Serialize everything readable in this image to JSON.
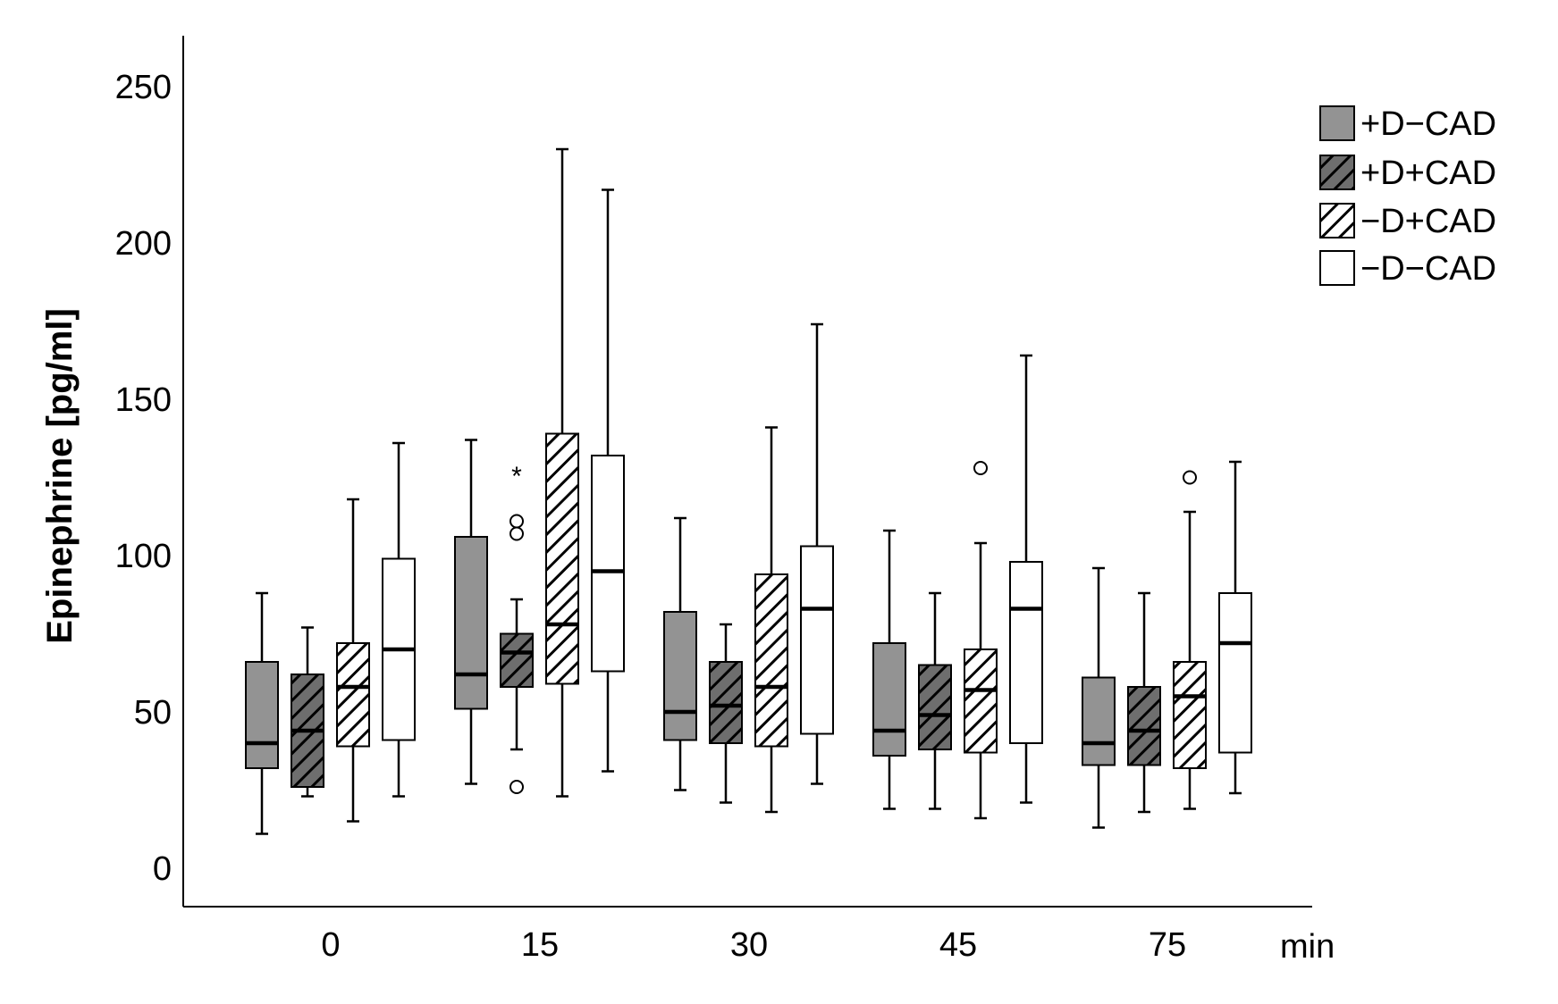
{
  "chart_data": {
    "type": "box",
    "title": "",
    "ylabel": "Epinephrine [pg/ml]",
    "xunit": "min",
    "ylim": [
      -13,
      266
    ],
    "yticks": [
      0,
      50,
      100,
      150,
      200,
      250
    ],
    "grid": false,
    "legend_position": "top-right",
    "categories": [
      "0",
      "15",
      "30",
      "45",
      "75"
    ],
    "series": [
      {
        "name": "+D−CAD",
        "fill": "#939393",
        "hatch": false,
        "boxes": [
          {
            "min": 11,
            "q1": 32,
            "median": 40,
            "q3": 66,
            "max": 88,
            "outliers": [],
            "extremes": []
          },
          {
            "min": 27,
            "q1": 51,
            "median": 62,
            "q3": 106,
            "max": 137,
            "outliers": [],
            "extremes": []
          },
          {
            "min": 25,
            "q1": 41,
            "median": 50,
            "q3": 82,
            "max": 112,
            "outliers": [],
            "extremes": []
          },
          {
            "min": 19,
            "q1": 36,
            "median": 44,
            "q3": 72,
            "max": 108,
            "outliers": [],
            "extremes": []
          },
          {
            "min": 13,
            "q1": 33,
            "median": 40,
            "q3": 61,
            "max": 96,
            "outliers": [],
            "extremes": []
          }
        ]
      },
      {
        "name": "+D+CAD",
        "fill": "#6e6e6e",
        "hatch": true,
        "boxes": [
          {
            "min": 23,
            "q1": 26,
            "median": 44,
            "q3": 62,
            "max": 77,
            "outliers": [],
            "extremes": []
          },
          {
            "min": 38,
            "q1": 58,
            "median": 69,
            "q3": 75,
            "max": 86,
            "outliers": [
              26,
              107,
              111
            ],
            "extremes": [
              126
            ]
          },
          {
            "min": 21,
            "q1": 40,
            "median": 52,
            "q3": 66,
            "max": 78,
            "outliers": [],
            "extremes": []
          },
          {
            "min": 19,
            "q1": 38,
            "median": 49,
            "q3": 65,
            "max": 88,
            "outliers": [],
            "extremes": []
          },
          {
            "min": 18,
            "q1": 33,
            "median": 44,
            "q3": 58,
            "max": 88,
            "outliers": [],
            "extremes": []
          }
        ]
      },
      {
        "name": "−D+CAD",
        "fill": "#ffffff",
        "hatch": true,
        "boxes": [
          {
            "min": 15,
            "q1": 39,
            "median": 58,
            "q3": 72,
            "max": 118,
            "outliers": [],
            "extremes": []
          },
          {
            "min": 23,
            "q1": 59,
            "median": 78,
            "q3": 139,
            "max": 230,
            "outliers": [],
            "extremes": []
          },
          {
            "min": 18,
            "q1": 39,
            "median": 58,
            "q3": 94,
            "max": 141,
            "outliers": [],
            "extremes": []
          },
          {
            "min": 16,
            "q1": 37,
            "median": 57,
            "q3": 70,
            "max": 104,
            "outliers": [
              128
            ],
            "extremes": []
          },
          {
            "min": 19,
            "q1": 32,
            "median": 55,
            "q3": 66,
            "max": 114,
            "outliers": [
              125
            ],
            "extremes": []
          }
        ]
      },
      {
        "name": "−D−CAD",
        "fill": "#ffffff",
        "hatch": false,
        "boxes": [
          {
            "min": 23,
            "q1": 41,
            "median": 70,
            "q3": 99,
            "max": 136,
            "outliers": [],
            "extremes": []
          },
          {
            "min": 31,
            "q1": 63,
            "median": 95,
            "q3": 132,
            "max": 217,
            "outliers": [],
            "extremes": []
          },
          {
            "min": 27,
            "q1": 43,
            "median": 83,
            "q3": 103,
            "max": 174,
            "outliers": [],
            "extremes": []
          },
          {
            "min": 21,
            "q1": 40,
            "median": 83,
            "q3": 98,
            "max": 164,
            "outliers": [],
            "extremes": []
          },
          {
            "min": 24,
            "q1": 37,
            "median": 72,
            "q3": 88,
            "max": 130,
            "outliers": [],
            "extremes": []
          }
        ]
      }
    ]
  }
}
